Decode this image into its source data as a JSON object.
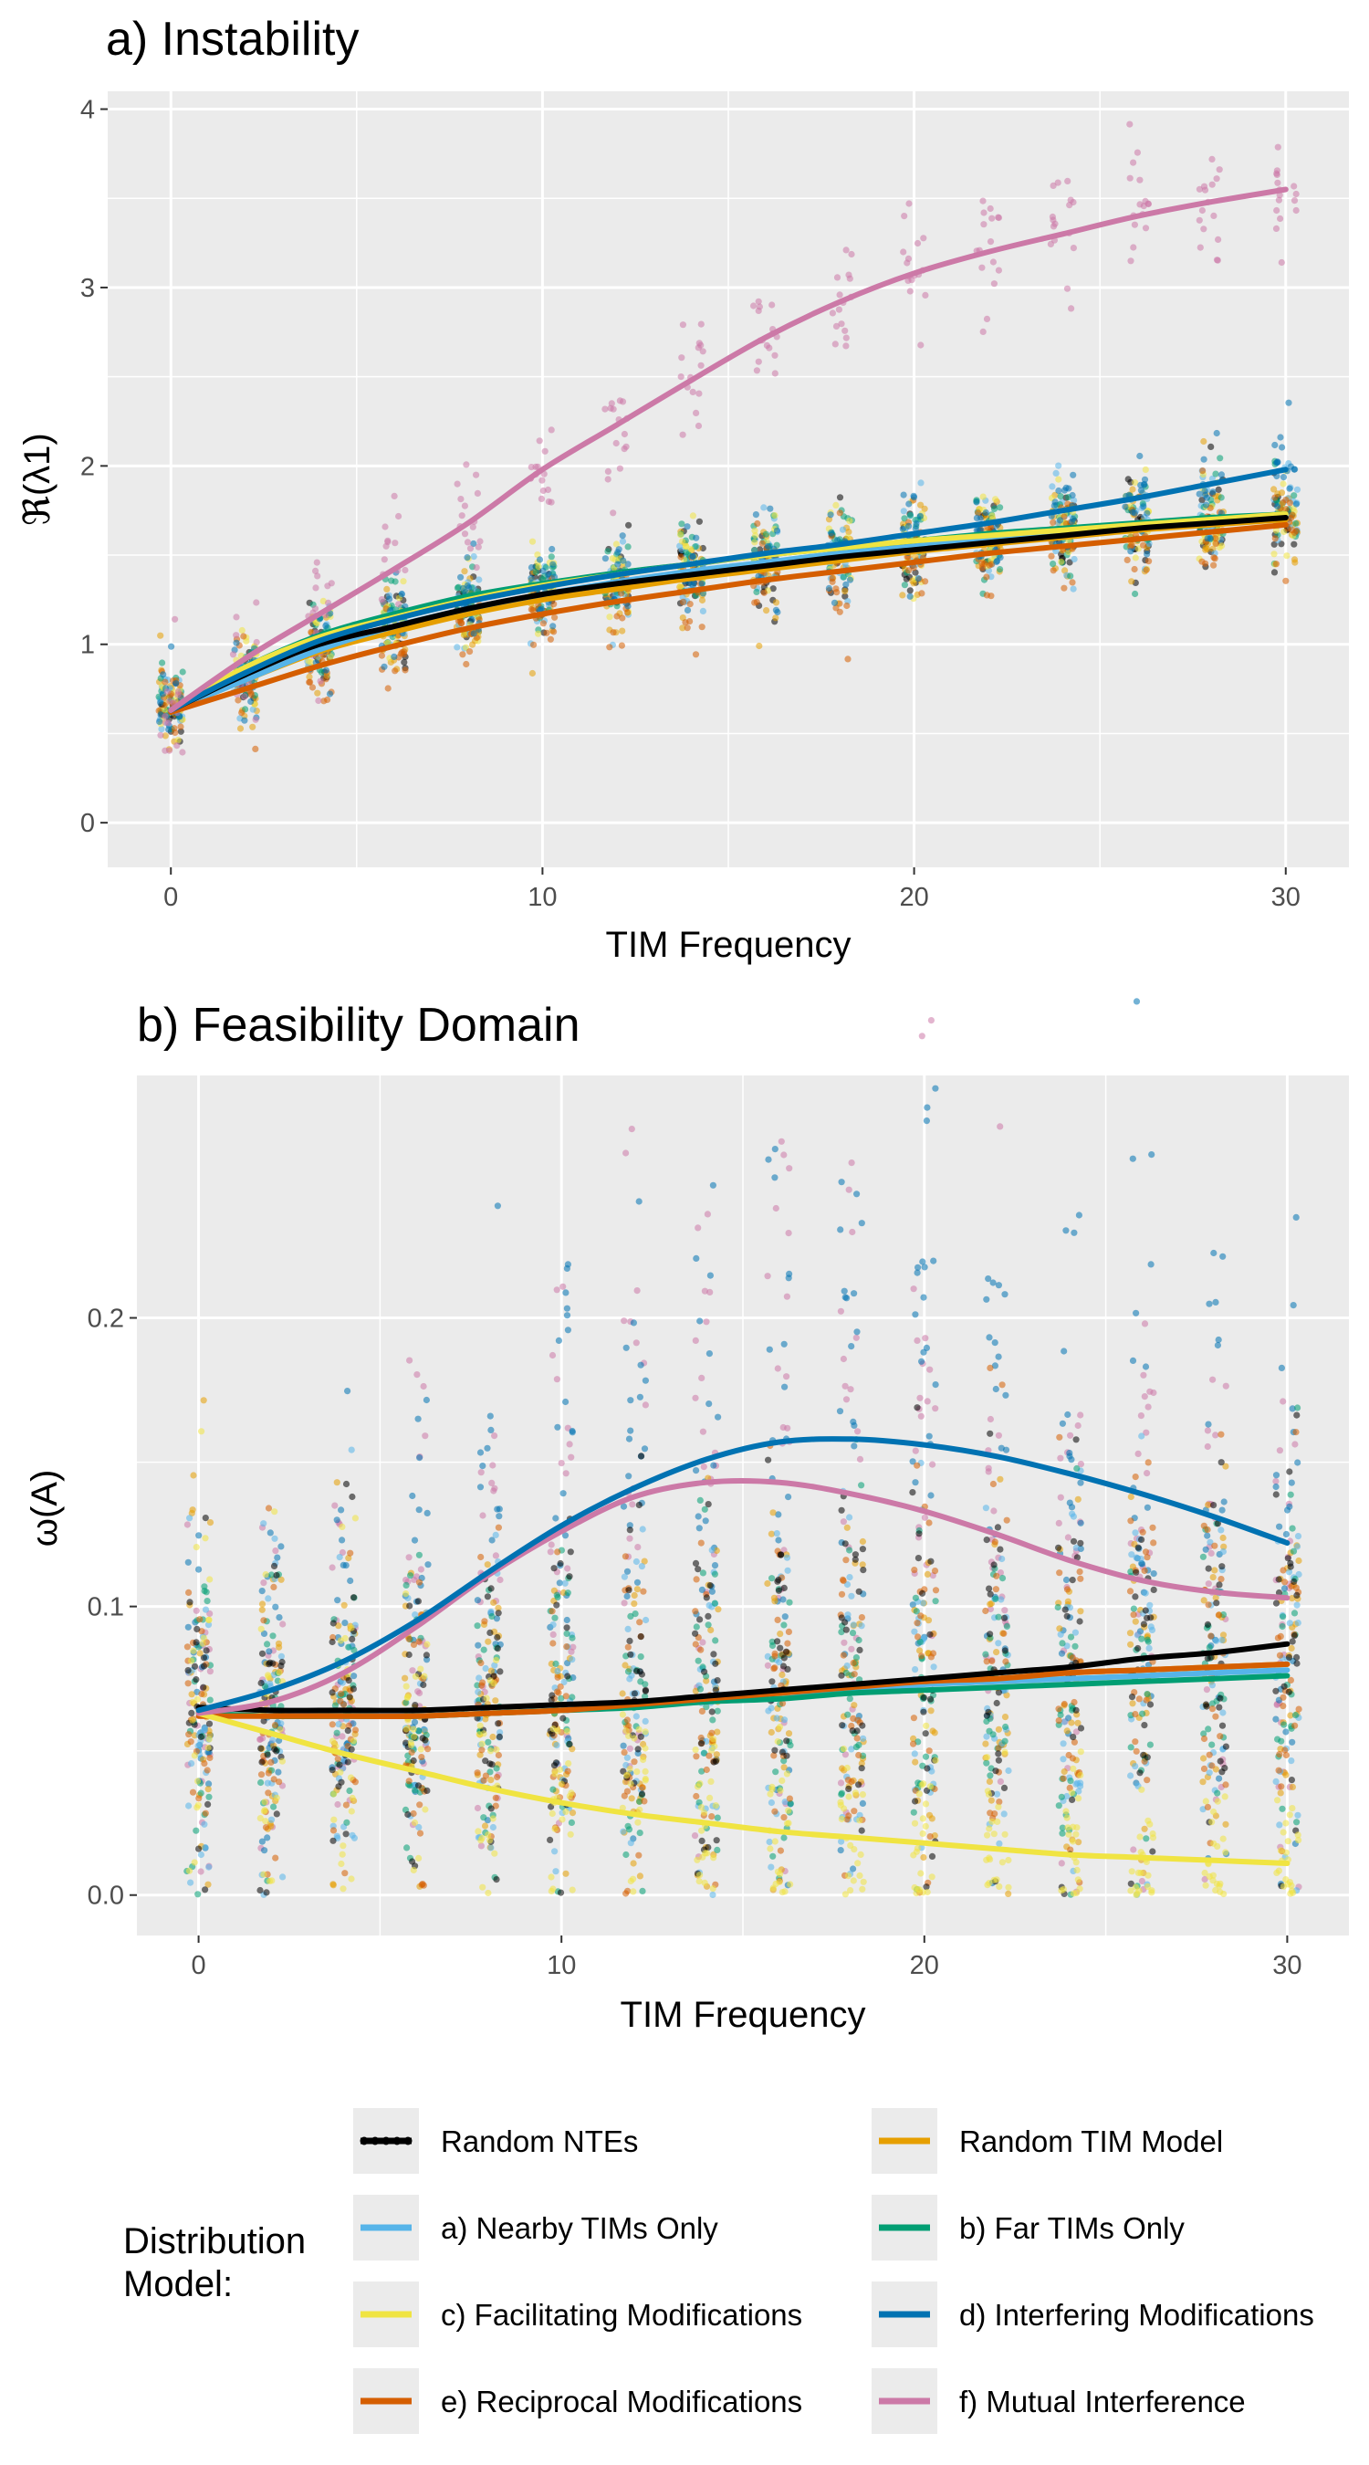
{
  "colors": {
    "random_ntes": "#000000",
    "random_tim_model": "#E69F00",
    "nearby": "#56B4E9",
    "far": "#009E73",
    "facilitating": "#F0E442",
    "interfering": "#0072B2",
    "reciprocal": "#D55E00",
    "mutual": "#CC79A7",
    "panel_bg": "#EBEBEB",
    "grid": "#FFFFFF"
  },
  "legend": {
    "title_line1": "Distribution",
    "title_line2": "Model:",
    "items": [
      {
        "label": "Random NTEs",
        "color": "#000000"
      },
      {
        "label": "Random TIM Model",
        "color": "#E69F00"
      },
      {
        "label": "a) Nearby TIMs Only",
        "color": "#56B4E9"
      },
      {
        "label": "b) Far TIMs Only",
        "color": "#009E73"
      },
      {
        "label": "c) Facilitating Modifications",
        "color": "#F0E442"
      },
      {
        "label": "d) Interfering Modifications",
        "color": "#0072B2"
      },
      {
        "label": "e) Reciprocal Modifications",
        "color": "#D55E00"
      },
      {
        "label": "f) Mutual Interference",
        "color": "#CC79A7"
      }
    ]
  },
  "chart_data": [
    {
      "type": "scatter",
      "title": "a) Instability",
      "xlabel": "TIM Frequency",
      "ylabel": "ℜ(λ1)",
      "xlim": [
        -1.7,
        31.7
      ],
      "ylim": [
        -0.25,
        4.1
      ],
      "xticks": [
        0,
        10,
        20,
        30
      ],
      "yticks": [
        0,
        1,
        2,
        3,
        4
      ],
      "grid": true,
      "x": [
        0,
        2,
        4,
        6,
        8,
        10,
        12,
        14,
        16,
        18,
        20,
        22,
        24,
        26,
        28,
        30
      ],
      "series": [
        {
          "name": "Random NTEs",
          "values": [
            0.63,
            0.83,
            1.0,
            1.1,
            1.2,
            1.28,
            1.34,
            1.39,
            1.44,
            1.49,
            1.53,
            1.57,
            1.61,
            1.65,
            1.68,
            1.71
          ]
        },
        {
          "name": "Random TIM Model",
          "values": [
            0.63,
            0.8,
            0.96,
            1.07,
            1.17,
            1.25,
            1.31,
            1.37,
            1.42,
            1.47,
            1.52,
            1.56,
            1.6,
            1.64,
            1.67,
            1.7
          ]
        },
        {
          "name": "a) Nearby TIMs Only",
          "values": [
            0.63,
            0.8,
            0.97,
            1.1,
            1.2,
            1.28,
            1.35,
            1.41,
            1.46,
            1.51,
            1.55,
            1.59,
            1.63,
            1.66,
            1.69,
            1.72
          ]
        },
        {
          "name": "b) Far TIMs Only",
          "values": [
            0.63,
            0.87,
            1.05,
            1.17,
            1.27,
            1.34,
            1.4,
            1.45,
            1.5,
            1.54,
            1.58,
            1.62,
            1.65,
            1.68,
            1.71,
            1.73
          ]
        },
        {
          "name": "c) Facilitating Modifications",
          "values": [
            0.63,
            0.87,
            1.04,
            1.15,
            1.25,
            1.33,
            1.39,
            1.45,
            1.5,
            1.54,
            1.58,
            1.61,
            1.64,
            1.67,
            1.7,
            1.73
          ]
        },
        {
          "name": "d) Interfering Modifications",
          "values": [
            0.63,
            0.84,
            1.02,
            1.14,
            1.24,
            1.32,
            1.39,
            1.45,
            1.51,
            1.56,
            1.62,
            1.68,
            1.75,
            1.82,
            1.9,
            1.98
          ]
        },
        {
          "name": "e) Reciprocal Modifications",
          "values": [
            0.62,
            0.75,
            0.88,
            0.99,
            1.09,
            1.17,
            1.24,
            1.3,
            1.36,
            1.41,
            1.46,
            1.51,
            1.55,
            1.59,
            1.63,
            1.67
          ]
        },
        {
          "name": "f) Mutual Interference",
          "values": [
            0.63,
            0.92,
            1.17,
            1.42,
            1.68,
            1.98,
            2.23,
            2.48,
            2.72,
            2.92,
            3.08,
            3.2,
            3.3,
            3.4,
            3.48,
            3.55
          ]
        }
      ]
    },
    {
      "type": "scatter",
      "title": "b) Feasibility Domain",
      "xlabel": "TIM Frequency",
      "ylabel": "ω(A)",
      "xlim": [
        -1.7,
        31.7
      ],
      "ylim": [
        -0.014,
        0.284
      ],
      "xticks": [
        0,
        10,
        20,
        30
      ],
      "yticks": [
        "0.0",
        "0.1",
        "0.2"
      ],
      "grid": true,
      "x": [
        0,
        2,
        4,
        6,
        8,
        10,
        12,
        14,
        16,
        18,
        20,
        22,
        24,
        26,
        28,
        30
      ],
      "series": [
        {
          "name": "Random NTEs",
          "values": [
            0.065,
            0.064,
            0.064,
            0.064,
            0.065,
            0.066,
            0.067,
            0.069,
            0.071,
            0.073,
            0.075,
            0.077,
            0.079,
            0.082,
            0.084,
            0.087
          ]
        },
        {
          "name": "Random TIM Model",
          "values": [
            0.063,
            0.062,
            0.062,
            0.062,
            0.063,
            0.064,
            0.066,
            0.068,
            0.07,
            0.072,
            0.074,
            0.075,
            0.077,
            0.078,
            0.079,
            0.08
          ]
        },
        {
          "name": "a) Nearby TIMs Only",
          "values": [
            0.063,
            0.062,
            0.062,
            0.062,
            0.063,
            0.064,
            0.066,
            0.068,
            0.07,
            0.071,
            0.073,
            0.074,
            0.075,
            0.076,
            0.077,
            0.078
          ]
        },
        {
          "name": "b) Far TIMs Only",
          "values": [
            0.063,
            0.062,
            0.062,
            0.062,
            0.063,
            0.064,
            0.065,
            0.067,
            0.068,
            0.07,
            0.071,
            0.072,
            0.073,
            0.074,
            0.075,
            0.076
          ]
        },
        {
          "name": "c) Facilitating Modifications",
          "values": [
            0.063,
            0.056,
            0.049,
            0.043,
            0.037,
            0.032,
            0.028,
            0.025,
            0.022,
            0.02,
            0.018,
            0.016,
            0.014,
            0.013,
            0.012,
            0.011
          ]
        },
        {
          "name": "d) Interfering Modifications",
          "values": [
            0.064,
            0.071,
            0.081,
            0.095,
            0.112,
            0.128,
            0.141,
            0.151,
            0.157,
            0.158,
            0.156,
            0.152,
            0.146,
            0.139,
            0.131,
            0.122
          ]
        },
        {
          "name": "e) Reciprocal Modifications",
          "values": [
            0.062,
            0.062,
            0.062,
            0.062,
            0.063,
            0.064,
            0.066,
            0.068,
            0.07,
            0.072,
            0.074,
            0.075,
            0.077,
            0.078,
            0.079,
            0.08
          ]
        },
        {
          "name": "f) Mutual Interference",
          "values": [
            0.063,
            0.067,
            0.077,
            0.093,
            0.111,
            0.126,
            0.138,
            0.143,
            0.143,
            0.139,
            0.133,
            0.125,
            0.116,
            0.109,
            0.105,
            0.103
          ]
        }
      ]
    }
  ]
}
